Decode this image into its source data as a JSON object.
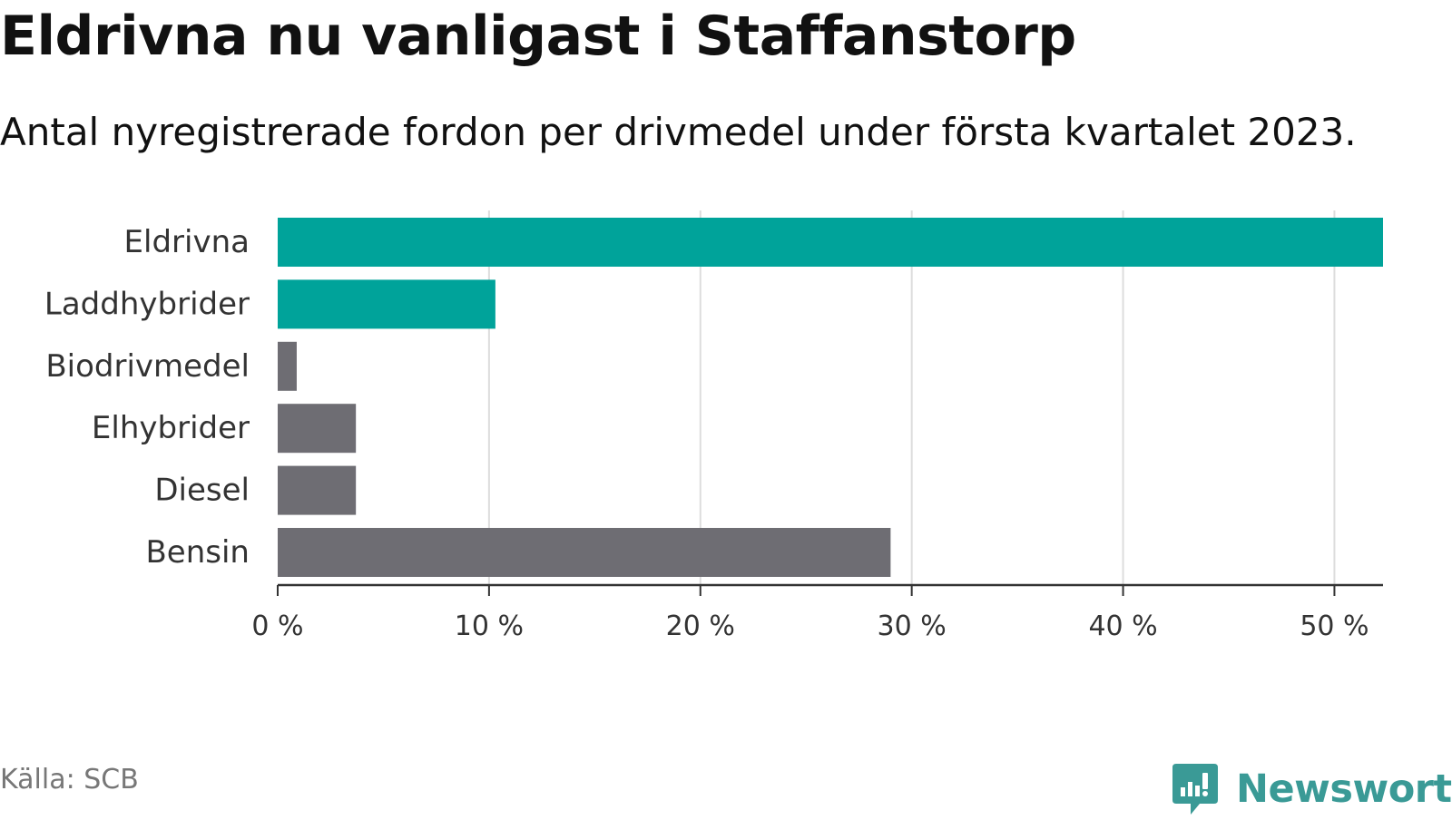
{
  "title": "Eldrivna nu vanligast i Staffanstorp",
  "subtitle": "Antal nyregistrerade fordon per drivmedel under första kvartalet 2023.",
  "source": "Källa: SCB",
  "brand": {
    "name": "Newsworthy",
    "icon": "newsworthy-logo-icon",
    "color": "#3a9a96"
  },
  "colors": {
    "highlight": "#00a39a",
    "other": "#6e6d73",
    "grid": "#dddddd",
    "axis": "#333333"
  },
  "chart_data": {
    "type": "bar",
    "orientation": "horizontal",
    "categories": [
      "Eldrivna",
      "Laddhybrider",
      "Biodrivmedel",
      "Elhybrider",
      "Diesel",
      "Bensin"
    ],
    "values": [
      52.3,
      10.3,
      0.9,
      3.7,
      3.7,
      29.0
    ],
    "bar_colors": [
      "#00a39a",
      "#00a39a",
      "#6e6d73",
      "#6e6d73",
      "#6e6d73",
      "#6e6d73"
    ],
    "xlim": [
      0,
      52.3
    ],
    "xticks": [
      0,
      10,
      20,
      30,
      40,
      50
    ],
    "xtick_labels": [
      "0 %",
      "10 %",
      "20 %",
      "30 %",
      "40 %",
      "50 %"
    ],
    "grid": true
  }
}
